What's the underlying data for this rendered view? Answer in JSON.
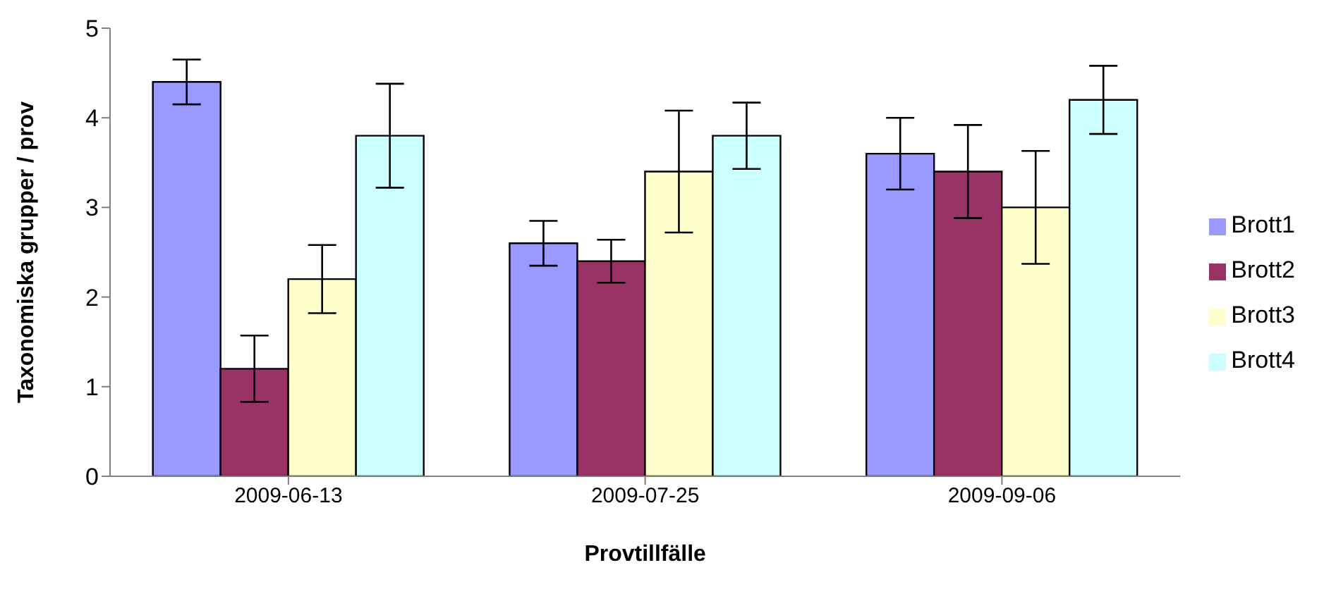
{
  "chart_data": {
    "type": "bar",
    "xlabel": "Provtillfälle",
    "ylabel": "Taxonomiska grupper / prov",
    "categories": [
      "2009-06-13",
      "2009-07-25",
      "2009-09-06"
    ],
    "series": [
      {
        "name": "Brott1",
        "color": "#9999ff",
        "values": [
          4.4,
          2.6,
          3.6
        ],
        "errors": [
          0.25,
          0.25,
          0.4
        ]
      },
      {
        "name": "Brott2",
        "color": "#993366",
        "values": [
          1.2,
          2.4,
          3.4
        ],
        "errors": [
          0.37,
          0.24,
          0.52
        ]
      },
      {
        "name": "Brott3",
        "color": "#ffffcc",
        "values": [
          2.2,
          3.4,
          3.0
        ],
        "errors": [
          0.38,
          0.68,
          0.63
        ]
      },
      {
        "name": "Brott4",
        "color": "#ccffff",
        "values": [
          3.8,
          3.8,
          4.2
        ],
        "errors": [
          0.58,
          0.37,
          0.38
        ]
      }
    ],
    "ylim": [
      0,
      5
    ],
    "yticks": [
      0,
      1,
      2,
      3,
      4,
      5
    ],
    "grid": false,
    "legend": "right"
  }
}
